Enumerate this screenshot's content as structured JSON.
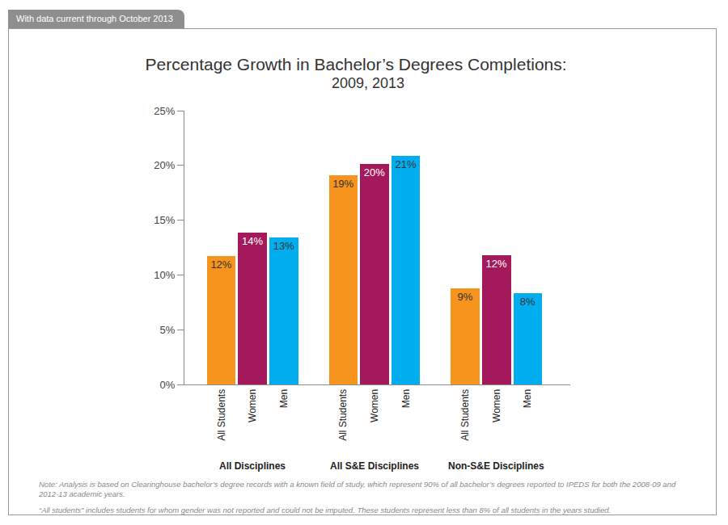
{
  "header": "With data current through October 2013",
  "chart_data": {
    "type": "bar",
    "title": "Percentage Growth in Bachelor’s Degrees Completions:",
    "subtitle": "2009, 2013",
    "categories": [
      "All Disciplines",
      "All S&E Disciplines",
      "Non-S&E Disciplines"
    ],
    "series": [
      {
        "name": "All Students",
        "color": "#f7941d",
        "values": [
          11.7,
          19.1,
          8.8
        ],
        "value_labels": [
          "12%",
          "19%",
          "9%"
        ]
      },
      {
        "name": "Women",
        "color": "#a3195b",
        "values": [
          13.9,
          20.1,
          11.8
        ],
        "value_labels": [
          "14%",
          "20%",
          "12%"
        ]
      },
      {
        "name": "Men",
        "color": "#00aeef",
        "values": [
          13.4,
          20.9,
          8.3
        ],
        "value_labels": [
          "13%",
          "21%",
          "8%"
        ]
      }
    ],
    "ylim": [
      0,
      25
    ],
    "yticks": [
      {
        "value": 0,
        "label": "0%"
      },
      {
        "value": 5,
        "label": "5%"
      },
      {
        "value": 10,
        "label": "10%"
      },
      {
        "value": 15,
        "label": "15%"
      },
      {
        "value": 20,
        "label": "20%"
      },
      {
        "value": 25,
        "label": "25%"
      }
    ],
    "grid": false,
    "data_labels": true
  },
  "notes": [
    "Note: Analysis is based on Clearinghouse bachelor’s degree records with a known field of study, which represent 90% of all bachelor’s degrees reported to IPEDS for both the 2008-09 and 2012-13 academic years.",
    "“All students” includes students for whom gender was not reported and could not be imputed. These students represent less than 8% of all students in the years studied."
  ]
}
